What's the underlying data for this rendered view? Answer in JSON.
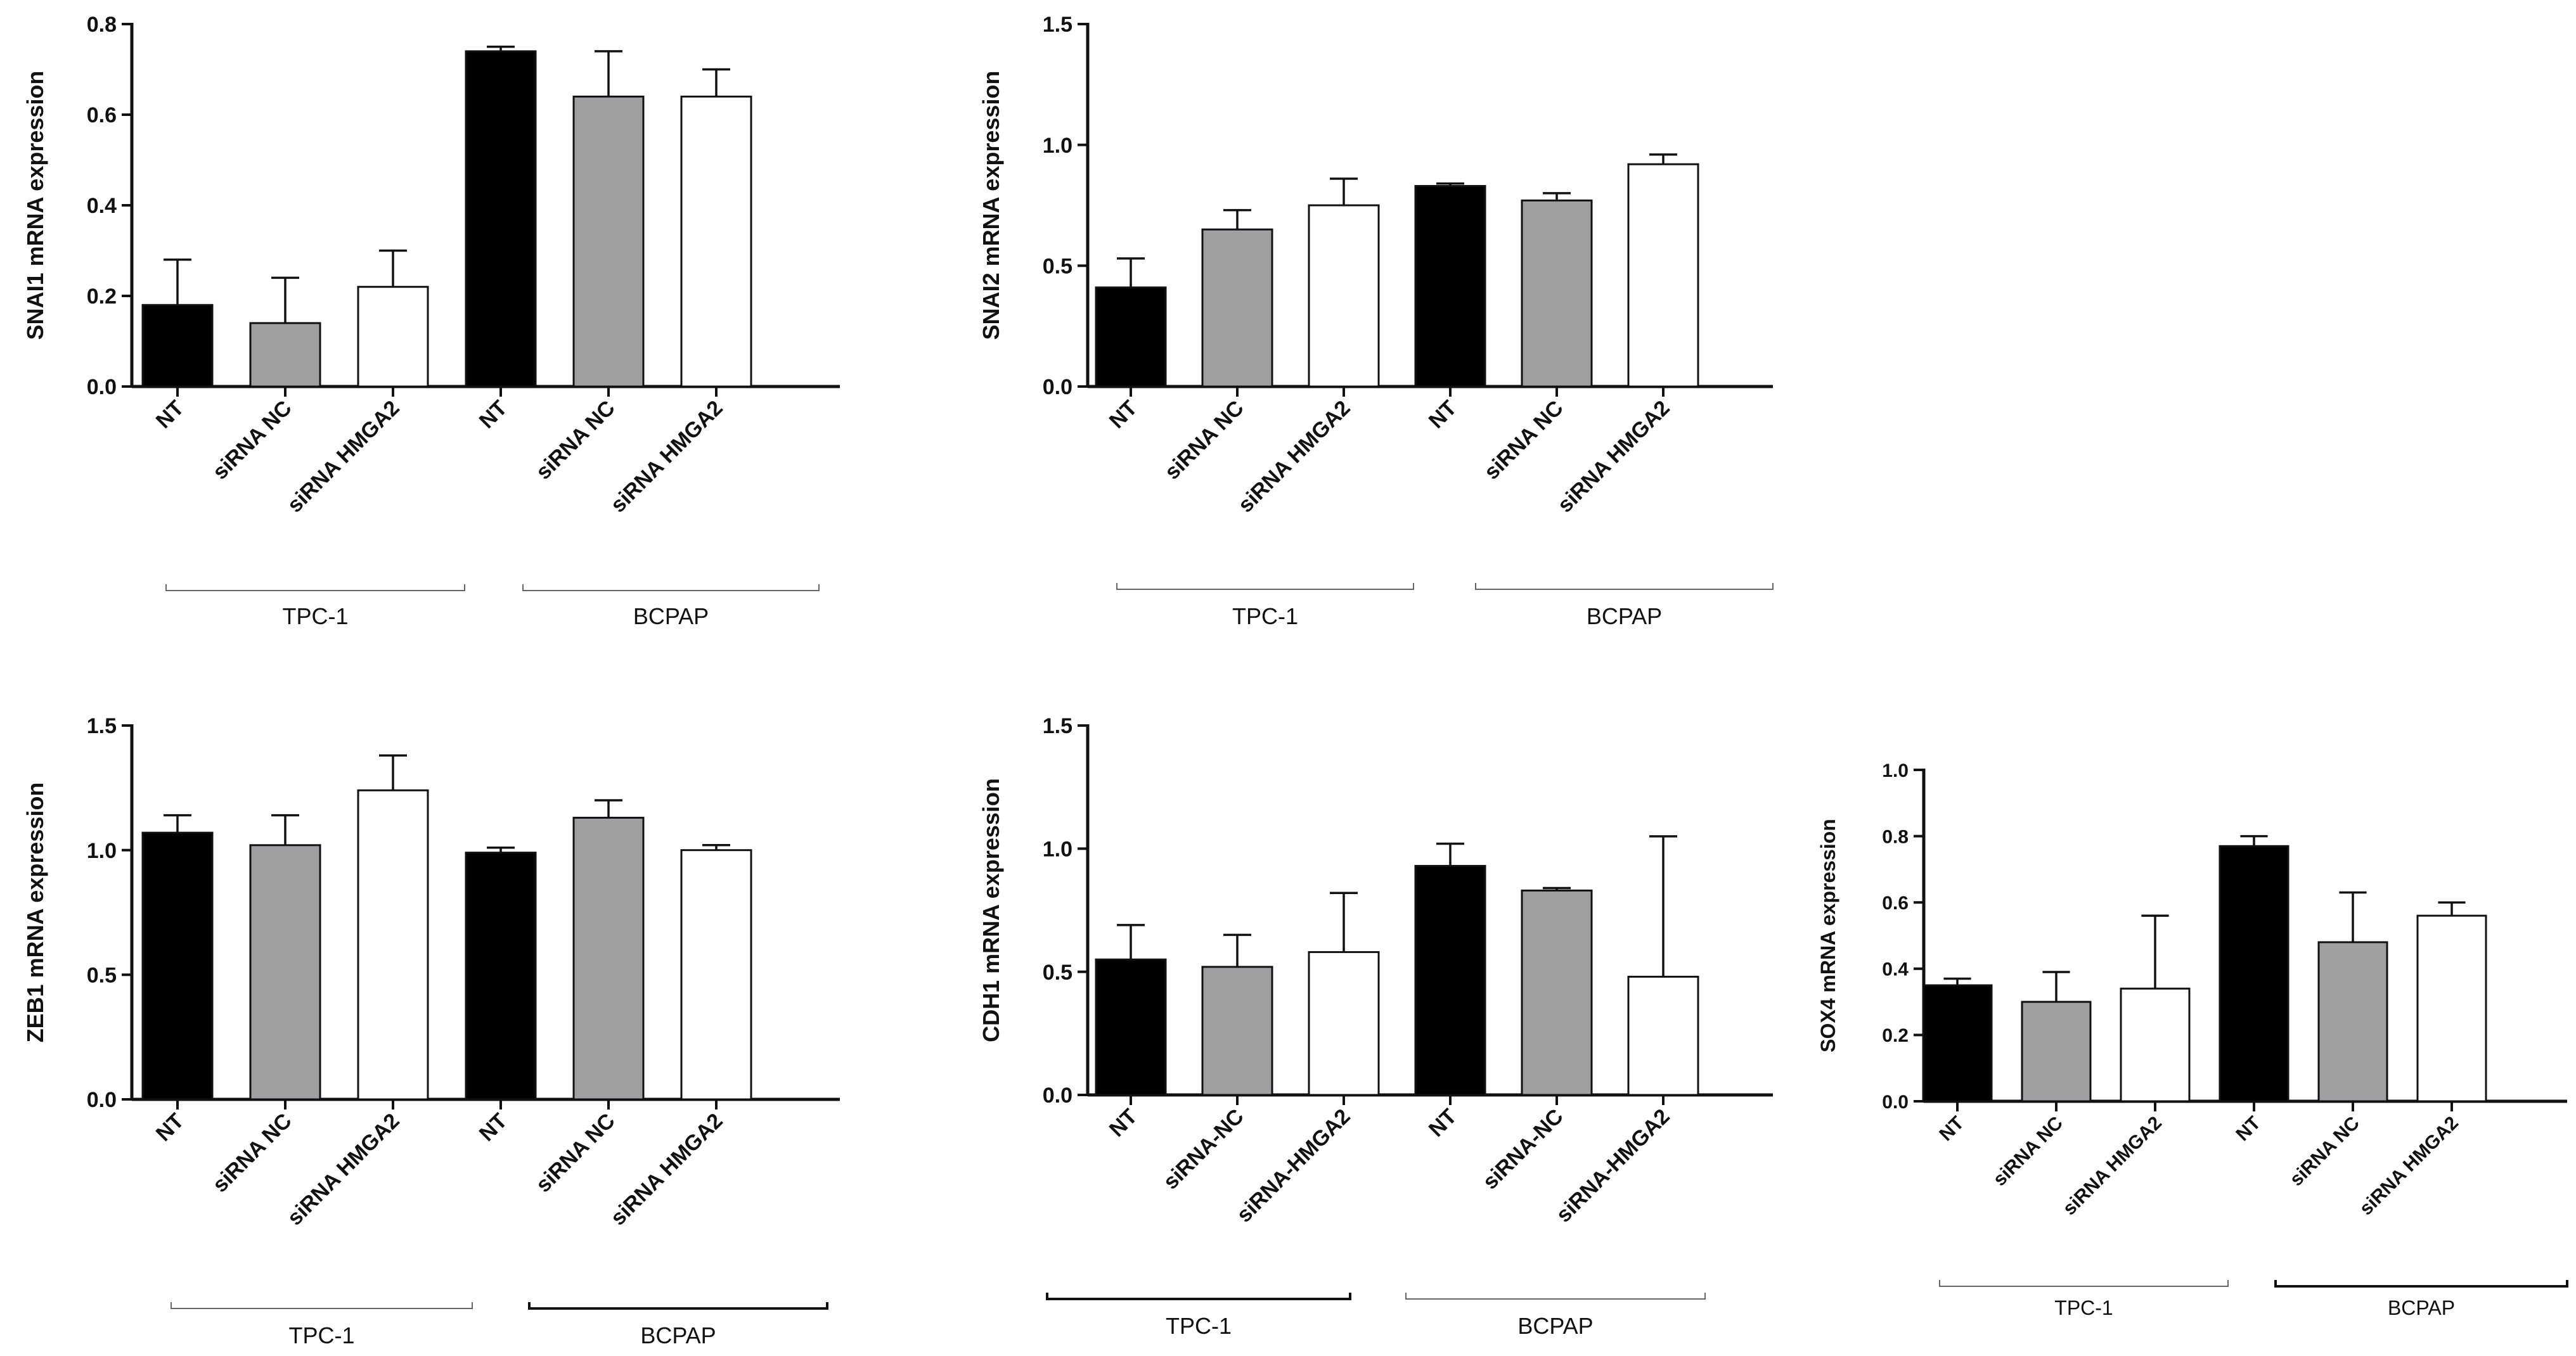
{
  "colors": {
    "NT": "#000000",
    "NC": "#a0a0a2",
    "HMGA2": "#ffffff",
    "axis": "#111111"
  },
  "chart_data": [
    {
      "type": "bar",
      "ylabel": "SNAI1 mRNA expression",
      "ylim": [
        0,
        0.8
      ],
      "ticks": [
        "0.0",
        "0.2",
        "0.4",
        "0.6",
        "0.8"
      ],
      "groups": [
        "TPC-1",
        "BCPAP"
      ],
      "categories": [
        "NT",
        "siRNA NC",
        "siRNA HMGA2",
        "NT",
        "siRNA NC",
        "siRNA HMGA2"
      ],
      "series_keys": [
        "NT",
        "NC",
        "HMGA2",
        "NT",
        "NC",
        "HMGA2"
      ],
      "values": [
        0.18,
        0.14,
        0.22,
        0.74,
        0.64,
        0.64
      ],
      "errors": [
        0.1,
        0.1,
        0.08,
        0.01,
        0.1,
        0.06
      ]
    },
    {
      "type": "bar",
      "ylabel": "SNAI2 mRNA expression",
      "ylim": [
        0,
        1.5
      ],
      "ticks": [
        "0.0",
        "0.5",
        "1.0",
        "1.5"
      ],
      "groups": [
        "TPC-1",
        "BCPAP"
      ],
      "categories": [
        "NT",
        "siRNA NC",
        "siRNA HMGA2",
        "NT",
        "siRNA NC",
        "siRNA HMGA2"
      ],
      "series_keys": [
        "NT",
        "NC",
        "HMGA2",
        "NT",
        "NC",
        "HMGA2"
      ],
      "values": [
        0.41,
        0.65,
        0.75,
        0.83,
        0.77,
        0.92
      ],
      "errors": [
        0.12,
        0.08,
        0.11,
        0.01,
        0.03,
        0.04
      ]
    },
    {
      "type": "bar",
      "ylabel": "ZEB1 mRNA expression",
      "ylim": [
        0,
        1.5
      ],
      "ticks": [
        "0.0",
        "0.5",
        "1.0",
        "1.5"
      ],
      "groups": [
        "TPC-1",
        "BCPAP"
      ],
      "categories": [
        "NT",
        "siRNA NC",
        "siRNA HMGA2",
        "NT",
        "siRNA NC",
        "siRNA HMGA2"
      ],
      "series_keys": [
        "NT",
        "NC",
        "HMGA2",
        "NT",
        "NC",
        "HMGA2"
      ],
      "values": [
        1.07,
        1.02,
        1.24,
        0.99,
        1.13,
        1.0
      ],
      "errors": [
        0.07,
        0.12,
        0.14,
        0.02,
        0.07,
        0.02
      ]
    },
    {
      "type": "bar",
      "ylabel": "CDH1 mRNA expression",
      "ylim": [
        0,
        1.5
      ],
      "ticks": [
        "0.0",
        "0.5",
        "1.0",
        "1.5"
      ],
      "groups": [
        "TPC-1",
        "BCPAP"
      ],
      "categories": [
        "NT",
        "siRNA-NC",
        "siRNA-HMGA2",
        "NT",
        "siRNA-NC",
        "siRNA-HMGA2"
      ],
      "series_keys": [
        "NT",
        "NC",
        "HMGA2",
        "NT",
        "NC",
        "HMGA2"
      ],
      "values": [
        0.55,
        0.52,
        0.58,
        0.93,
        0.83,
        0.48
      ],
      "errors": [
        0.14,
        0.13,
        0.24,
        0.09,
        0.01,
        0.57
      ]
    },
    {
      "type": "bar",
      "ylabel": "SOX4 mRNA expression",
      "ylim": [
        0,
        1.0
      ],
      "ticks": [
        "0.0",
        "0.2",
        "0.4",
        "0.6",
        "0.8",
        "1.0"
      ],
      "groups": [
        "TPC-1",
        "BCPAP"
      ],
      "categories": [
        "NT",
        "siRNA NC",
        "siRNA HMGA2",
        "NT",
        "siRNA NC",
        "siRNA HMGA2"
      ],
      "series_keys": [
        "NT",
        "NC",
        "HMGA2",
        "NT",
        "NC",
        "HMGA2"
      ],
      "values": [
        0.35,
        0.3,
        0.34,
        0.77,
        0.48,
        0.56
      ],
      "errors": [
        0.02,
        0.09,
        0.22,
        0.03,
        0.15,
        0.04
      ]
    }
  ]
}
